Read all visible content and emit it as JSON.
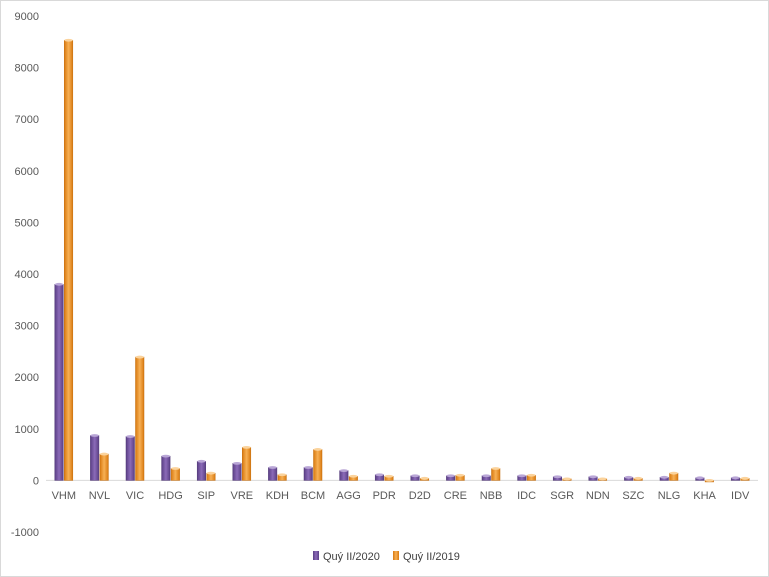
{
  "chart_data": {
    "type": "bar",
    "categories": [
      "VHM",
      "NVL",
      "VIC",
      "HDG",
      "SIP",
      "VRE",
      "KDH",
      "BCM",
      "AGG",
      "PDR",
      "D2D",
      "CRE",
      "NBB",
      "IDC",
      "SGR",
      "NDN",
      "SZC",
      "NLG",
      "KHA",
      "IDV"
    ],
    "series": [
      {
        "name": "Quý II/2020",
        "color": "#7a5aa6",
        "values": [
          3800,
          870,
          850,
          470,
          370,
          330,
          250,
          250,
          190,
          110,
          90,
          90,
          90,
          90,
          70,
          70,
          60,
          60,
          50,
          50
        ]
      },
      {
        "name": "Quý II/2019",
        "color": "#f39a2a",
        "values": [
          8530,
          510,
          2390,
          230,
          140,
          640,
          110,
          600,
          80,
          80,
          40,
          100,
          230,
          100,
          30,
          30,
          40,
          140,
          -30,
          40
        ]
      }
    ],
    "ylim": [
      -1000,
      9000
    ],
    "yticks": [
      -1000,
      0,
      1000,
      2000,
      3000,
      4000,
      5000,
      6000,
      7000,
      8000,
      9000
    ],
    "legend_position": "bottom",
    "grid": false
  }
}
